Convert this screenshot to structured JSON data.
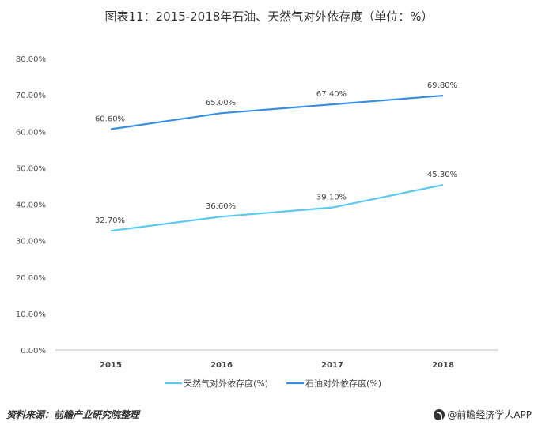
{
  "title": "图表11：2015-2018年石油、天然气对外依存度（单位：%）",
  "footer": {
    "source": "资料来源：前瞻产业研究院整理",
    "brand": "@前瞻经济学人APP"
  },
  "colors": {
    "oil": "#3a8ee0",
    "gas": "#5cc8f0",
    "axis": "#bfbfbf"
  },
  "chart_data": {
    "type": "line",
    "categories": [
      "2015",
      "2016",
      "2017",
      "2018"
    ],
    "series": [
      {
        "name": "天然气对外依存度(%)",
        "values": [
          32.7,
          36.6,
          39.1,
          45.3
        ],
        "labels": [
          "32.70%",
          "36.60%",
          "39.10%",
          "45.30%"
        ],
        "color": "#5cc8f0"
      },
      {
        "name": "石油对外依存度(%)",
        "values": [
          60.6,
          65.0,
          67.4,
          69.8
        ],
        "labels": [
          "60.60%",
          "65.00%",
          "67.40%",
          "69.80%"
        ],
        "color": "#3a8ee0"
      }
    ],
    "yticks": [
      "0.00%",
      "10.00%",
      "20.00%",
      "30.00%",
      "40.00%",
      "50.00%",
      "60.00%",
      "70.00%",
      "80.00%"
    ],
    "ylim": [
      0,
      80
    ],
    "grid": false,
    "legend_position": "bottom"
  }
}
